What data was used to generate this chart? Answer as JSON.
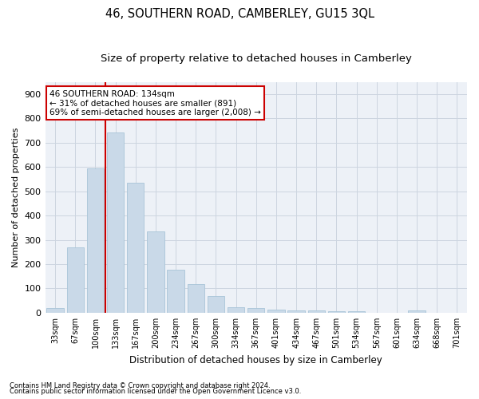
{
  "title": "46, SOUTHERN ROAD, CAMBERLEY, GU15 3QL",
  "subtitle": "Size of property relative to detached houses in Camberley",
  "xlabel": "Distribution of detached houses by size in Camberley",
  "ylabel": "Number of detached properties",
  "categories": [
    "33sqm",
    "67sqm",
    "100sqm",
    "133sqm",
    "167sqm",
    "200sqm",
    "234sqm",
    "267sqm",
    "300sqm",
    "334sqm",
    "367sqm",
    "401sqm",
    "434sqm",
    "467sqm",
    "501sqm",
    "534sqm",
    "567sqm",
    "601sqm",
    "634sqm",
    "668sqm",
    "701sqm"
  ],
  "values": [
    20,
    270,
    595,
    740,
    535,
    335,
    178,
    118,
    68,
    22,
    20,
    13,
    10,
    8,
    7,
    5,
    0,
    0,
    8,
    0,
    0
  ],
  "bar_color": "#c9d9e8",
  "bar_edge_color": "#a8c4d8",
  "vline_color": "#cc0000",
  "annotation_text": "46 SOUTHERN ROAD: 134sqm\n← 31% of detached houses are smaller (891)\n69% of semi-detached houses are larger (2,008) →",
  "annotation_box_color": "#ffffff",
  "annotation_box_edge": "#cc0000",
  "footnote1": "Contains HM Land Registry data © Crown copyright and database right 2024.",
  "footnote2": "Contains public sector information licensed under the Open Government Licence v3.0.",
  "ylim": [
    0,
    950
  ],
  "yticks": [
    0,
    100,
    200,
    300,
    400,
    500,
    600,
    700,
    800,
    900
  ],
  "title_fontsize": 10.5,
  "subtitle_fontsize": 9.5,
  "grid_color": "#ccd5e0",
  "bg_color": "#edf1f7"
}
